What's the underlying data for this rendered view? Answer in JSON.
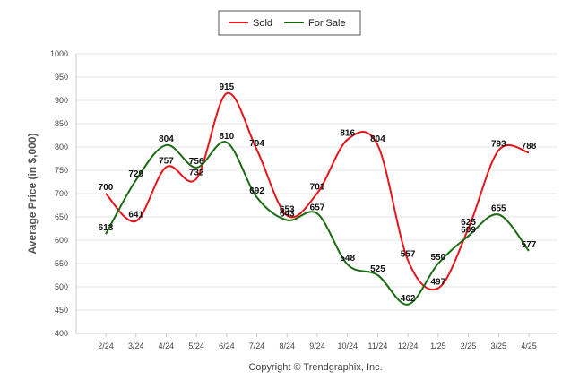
{
  "chart_data": {
    "type": "line",
    "ylabel": "Average Price (in $,000)",
    "ylim": [
      400,
      1000
    ],
    "yticks": [
      400,
      450,
      500,
      550,
      600,
      650,
      700,
      750,
      800,
      850,
      900,
      950,
      1000
    ],
    "categories": [
      "2/24",
      "3/24",
      "4/24",
      "5/24",
      "6/24",
      "7/24",
      "8/24",
      "9/24",
      "10/24",
      "11/24",
      "12/24",
      "1/25",
      "2/25",
      "3/25",
      "4/25"
    ],
    "grid": true,
    "legend_position": "top-center",
    "series": [
      {
        "name": "Sold",
        "color": "#e8141b",
        "values": [
          700,
          641,
          757,
          732,
          915,
          794,
          653,
          701,
          816,
          804,
          557,
          497,
          625,
          793,
          788
        ]
      },
      {
        "name": "For Sale",
        "color": "#1a6b12",
        "values": [
          613,
          729,
          804,
          756,
          810,
          692,
          643,
          657,
          548,
          525,
          462,
          550,
          609,
          655,
          577
        ]
      }
    ],
    "footer": "Copyright © Trendgraphix, Inc."
  }
}
